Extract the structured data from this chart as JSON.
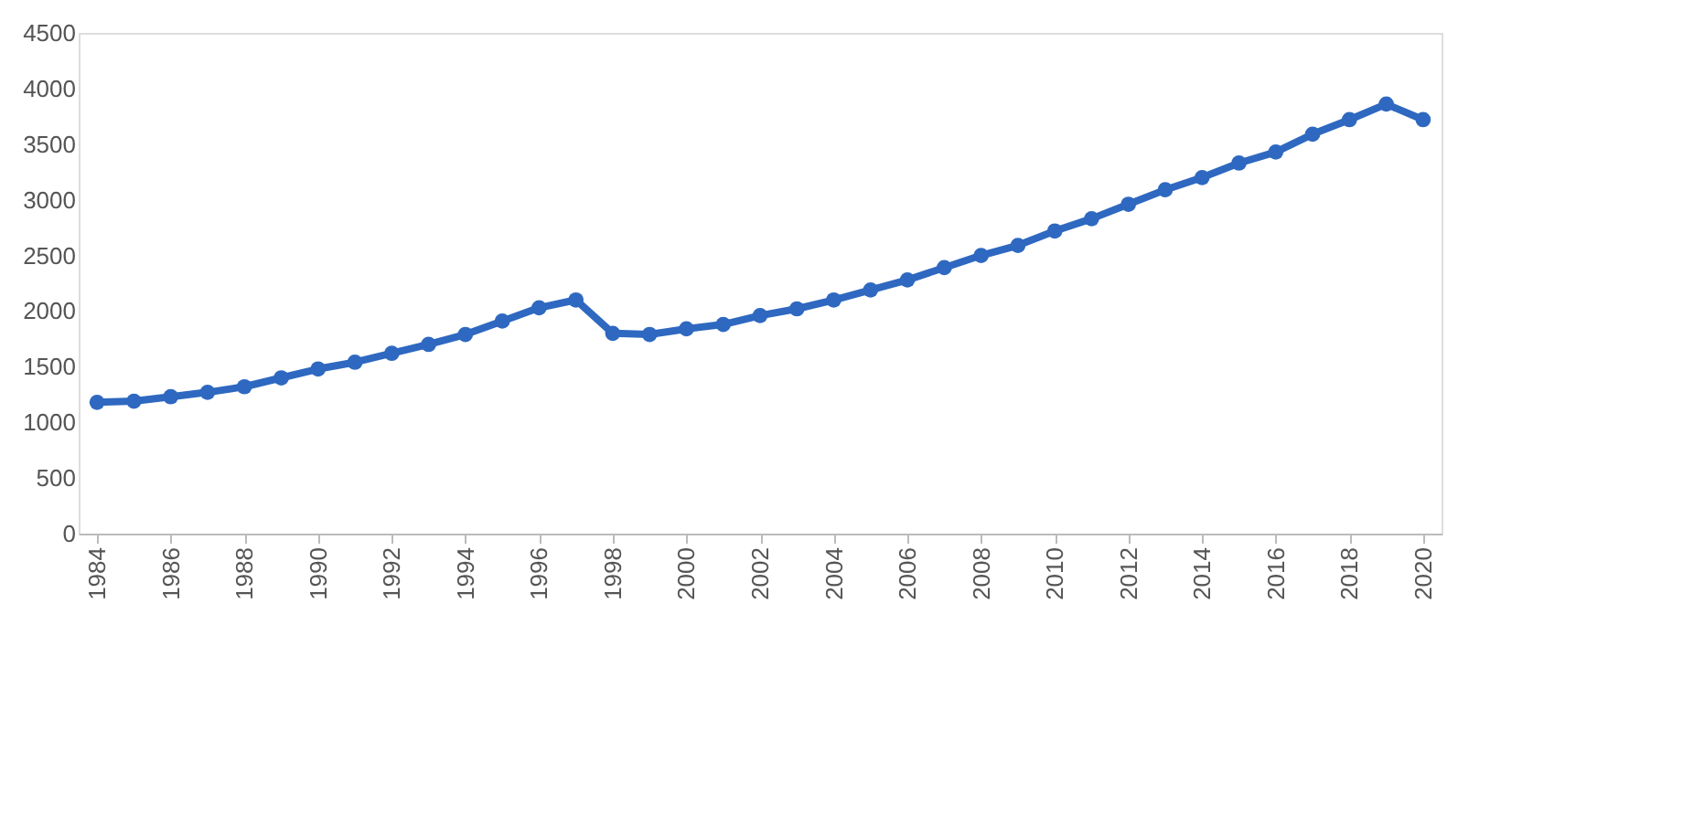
{
  "chart_data": {
    "type": "line",
    "x": [
      1984,
      1985,
      1986,
      1987,
      1988,
      1989,
      1990,
      1991,
      1992,
      1993,
      1994,
      1995,
      1996,
      1997,
      1998,
      1999,
      2000,
      2001,
      2002,
      2003,
      2004,
      2005,
      2006,
      2007,
      2008,
      2009,
      2010,
      2011,
      2012,
      2013,
      2014,
      2015,
      2016,
      2017,
      2018,
      2019,
      2020
    ],
    "series": [
      {
        "color": "#2e68c0",
        "values": [
          1180,
          1190,
          1230,
          1270,
          1320,
          1400,
          1480,
          1540,
          1620,
          1700,
          1790,
          1910,
          2030,
          2100,
          1800,
          1790,
          1840,
          1880,
          1960,
          2020,
          2100,
          2190,
          2280,
          2390,
          2500,
          2590,
          2720,
          2830,
          2960,
          3090,
          3200,
          3330,
          3430,
          3590,
          3720,
          3860,
          3720
        ]
      }
    ],
    "xlim": [
      1983.5,
      2020.5
    ],
    "xticks": [
      1984,
      1986,
      1988,
      1990,
      1992,
      1994,
      1996,
      1998,
      2000,
      2002,
      2004,
      2006,
      2008,
      2010,
      2012,
      2014,
      2016,
      2018,
      2020
    ],
    "ylim": [
      0,
      4500
    ],
    "yticks": [
      0,
      500,
      1000,
      1500,
      2000,
      2500,
      3000,
      3500,
      4000,
      4500
    ],
    "grid": false,
    "marker": "circle",
    "line_style": "solid"
  }
}
